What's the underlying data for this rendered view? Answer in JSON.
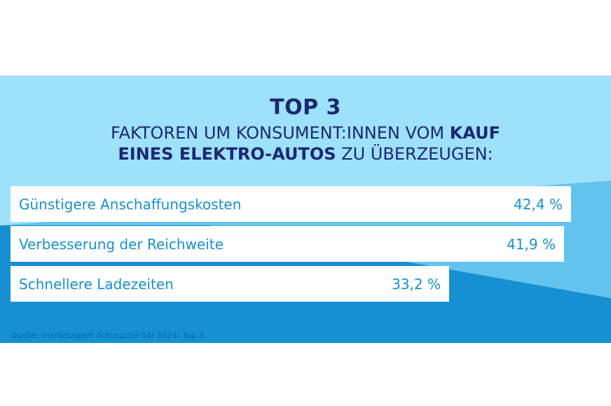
{
  "chart_data": {
    "type": "bar",
    "orientation": "horizontal",
    "title": "TOP 3",
    "subtitle": {
      "line1_regular": "FAKTOREN UM KONSUMENT:INNEN VOM ",
      "line1_bold": "KAUF",
      "line2_bold": "EINES ELEKTRO-AUTOS",
      "line2_regular": " ZU ÜBERZEUGEN:"
    },
    "categories": [
      "Günstigere Anschaffungskosten",
      "Verbesserung der Reichweite",
      "Schnellere Ladezeiten"
    ],
    "values": [
      42.4,
      41.9,
      33.2
    ],
    "value_labels": [
      "42,4 %",
      "41,9 %",
      "33,2 %"
    ],
    "unit": "%",
    "xlim": [
      0,
      44.8
    ]
  },
  "source": "Quelle: marketagent Autosuche 04/ 2024/ Top 3",
  "colors": {
    "background_light": "#9ee1fb",
    "background_mid": "#62c3ee",
    "background_dark": "#1690d2",
    "heading_text": "#1a2873",
    "bar_fill": "#ffffff",
    "bar_text": "#1690d2"
  }
}
